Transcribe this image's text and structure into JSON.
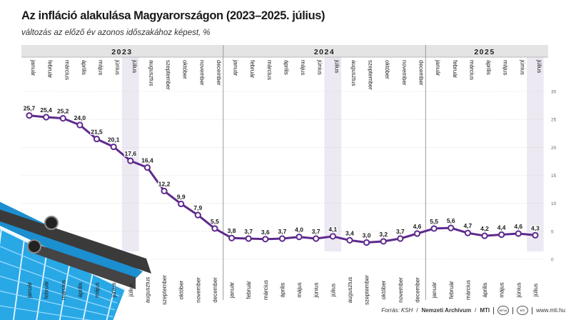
{
  "chart_data": {
    "type": "line",
    "title": "Az infláció alakulása Magyarországon (2023–2025. július)",
    "subtitle": "változás az előző év azonos időszakához képest, %",
    "years": [
      {
        "label": "2023",
        "start": 0,
        "count": 12
      },
      {
        "label": "2024",
        "start": 12,
        "count": 12
      },
      {
        "label": "2025",
        "start": 24,
        "count": 7
      }
    ],
    "categories": [
      "január",
      "február",
      "március",
      "április",
      "május",
      "június",
      "július",
      "augusztus",
      "szeptember",
      "október",
      "november",
      "december",
      "január",
      "február",
      "március",
      "április",
      "május",
      "június",
      "július",
      "augusztus",
      "szeptember",
      "október",
      "november",
      "december",
      "január",
      "február",
      "március",
      "április",
      "május",
      "június",
      "július"
    ],
    "values": [
      25.7,
      25.4,
      25.2,
      24.0,
      21.5,
      20.1,
      17.6,
      16.4,
      12.2,
      9.9,
      7.9,
      5.5,
      3.8,
      3.7,
      3.6,
      3.7,
      4.0,
      3.7,
      4.1,
      3.4,
      3.0,
      3.2,
      3.7,
      4.6,
      5.5,
      5.6,
      4.7,
      4.2,
      4.4,
      4.6,
      4.3
    ],
    "value_labels": [
      "25,7",
      "25,4",
      "25,2",
      "24,0",
      "21,5",
      "20,1",
      "17,6",
      "16,4",
      "12,2",
      "9,9",
      "7,9",
      "5,5",
      "3,8",
      "3,7",
      "3,6",
      "3,7",
      "4,0",
      "3,7",
      "4,1",
      "3,4",
      "3,0",
      "3,2",
      "3,7",
      "4,6",
      "5,5",
      "5,6",
      "4,7",
      "4,2",
      "4,4",
      "4,6",
      "4,3"
    ],
    "highlighted_months": [
      6,
      18,
      30
    ],
    "ylim": [
      0,
      30
    ],
    "yticks": [
      0,
      5,
      10,
      15,
      20,
      25,
      30
    ],
    "grid": true,
    "colors": {
      "line": "#5e2a8c",
      "header": "#e4e4e4",
      "highlight": "#ece9f3",
      "grid": "#cfcfcf",
      "basket": "#29a8e6"
    }
  },
  "footer": {
    "source_label": "Forrás: KSH",
    "archive_label": "Nemzeti Archívum",
    "agency_label": "MTI",
    "logo1_text": "MTVA",
    "logo2_text": "MTI",
    "url": "www.mti.hu"
  }
}
